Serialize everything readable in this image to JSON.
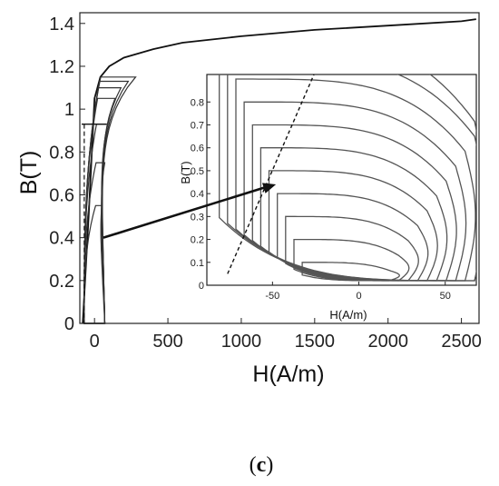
{
  "chart_data": [
    {
      "type": "line",
      "title": "",
      "xlabel": "H(A/m)",
      "ylabel": "B(T)",
      "xlim": [
        -100,
        2620
      ],
      "ylim": [
        0,
        1.45
      ],
      "xticks": [
        "0",
        "500",
        "1000",
        "1500",
        "2000",
        "2500"
      ],
      "yticks": [
        "0",
        "0.2",
        "0.4",
        "0.6",
        "0.8",
        "1",
        "1.2",
        "1.4"
      ],
      "grid": false,
      "legend": null,
      "color": "#333333",
      "series": [
        {
          "kind": "magnetization-curve",
          "x": [
            -80,
            -40,
            0,
            40,
            100,
            200,
            400,
            600,
            1000,
            1500,
            2000,
            2500,
            2600
          ],
          "y": [
            0,
            0.5,
            1.05,
            1.15,
            1.2,
            1.24,
            1.28,
            1.31,
            1.34,
            1.37,
            1.39,
            1.41,
            1.42
          ]
        },
        {
          "kind": "minor-loop",
          "amplitude_T": 1.15,
          "h_tip": 280
        },
        {
          "kind": "minor-loop",
          "amplitude_T": 1.13,
          "h_tip": 230
        },
        {
          "kind": "minor-loop",
          "amplitude_T": 1.1,
          "h_tip": 180
        },
        {
          "kind": "minor-loop",
          "amplitude_T": 1.05,
          "h_tip": 140
        },
        {
          "kind": "minor-loop",
          "amplitude_T": 0.93,
          "h_tip": 90
        },
        {
          "kind": "minor-loop",
          "amplitude_T": 0.75,
          "h_tip": 70
        },
        {
          "kind": "minor-loop",
          "amplitude_T": 0.55,
          "h_tip": 50
        }
      ],
      "annotation": {
        "dashed_level_T": 0.93,
        "arrow_from": [
          60,
          0.4
        ],
        "arrow_to": [
          1250,
          0.44
        ]
      }
    },
    {
      "type": "line",
      "title": "",
      "xlabel": "H(A/m)",
      "ylabel": "B(T)",
      "xlim": [
        -88,
        68
      ],
      "ylim": [
        0,
        0.92
      ],
      "xticks": [
        "-50",
        "0",
        "50"
      ],
      "yticks": [
        "0",
        "0.1",
        "0.2",
        "0.3",
        "0.4",
        "0.5",
        "0.6",
        "0.7",
        "0.8"
      ],
      "grid": false,
      "legend": null,
      "color": "#555555",
      "series": [
        {
          "kind": "loop",
          "b_max_T": 0.1
        },
        {
          "kind": "loop",
          "b_max_T": 0.2
        },
        {
          "kind": "loop",
          "b_max_T": 0.3
        },
        {
          "kind": "loop",
          "b_max_T": 0.4
        },
        {
          "kind": "loop",
          "b_max_T": 0.5
        },
        {
          "kind": "loop",
          "b_max_T": 0.6
        },
        {
          "kind": "loop",
          "b_max_T": 0.7
        },
        {
          "kind": "loop",
          "b_max_T": 0.8
        },
        {
          "kind": "loop",
          "b_max_T": 0.9
        },
        {
          "kind": "loop",
          "b_max_T": 1.0
        },
        {
          "kind": "loop",
          "b_max_T": 1.1
        }
      ]
    }
  ],
  "caption": {
    "open": "(",
    "letter": "c",
    "close": ")"
  }
}
